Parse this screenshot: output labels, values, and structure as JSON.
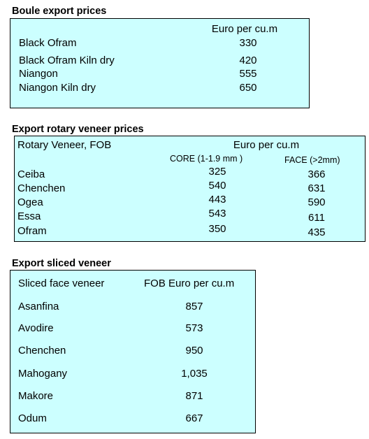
{
  "boule": {
    "title": "Boule export prices",
    "col_header": "Euro per cu.m",
    "rows": [
      {
        "name": "Black Ofram",
        "value": "330"
      },
      {
        "name": "Black Ofram  Kiln dry",
        "value": "420"
      },
      {
        "name": "Niangon",
        "value": "555"
      },
      {
        "name": "Niangon Kiln dry",
        "value": "650"
      }
    ]
  },
  "rotary": {
    "title": "Export rotary veneer prices",
    "row_header": "Rotary Veneer,  FOB",
    "col_header": "Euro  per cu.m",
    "sub_core": "CORE (1-1.9 mm )",
    "sub_face": "FACE (>2mm)",
    "rows": [
      {
        "name": "Ceiba",
        "core": "325",
        "face": "366"
      },
      {
        "name": "Chenchen",
        "core": "540",
        "face": "631"
      },
      {
        "name": "Ogea",
        "core": "443",
        "face": "590"
      },
      {
        "name": "Essa",
        "core": "543",
        "face": "611"
      },
      {
        "name": "Ofram",
        "core": "350",
        "face": "435"
      }
    ]
  },
  "sliced": {
    "title": "Export sliced veneer",
    "row_header": "Sliced face veneer",
    "col_header": "FOB Euro per cu.m",
    "rows": [
      {
        "name": "Asanfina",
        "value": "857"
      },
      {
        "name": "Avodire",
        "value": "573"
      },
      {
        "name": "Chenchen",
        "value": "950"
      },
      {
        "name": "Mahogany",
        "value": "1,035"
      },
      {
        "name": "Makore",
        "value": "871"
      },
      {
        "name": "Odum",
        "value": "667"
      }
    ]
  },
  "colors": {
    "table_bg": "#ccffff",
    "border": "#000000"
  }
}
